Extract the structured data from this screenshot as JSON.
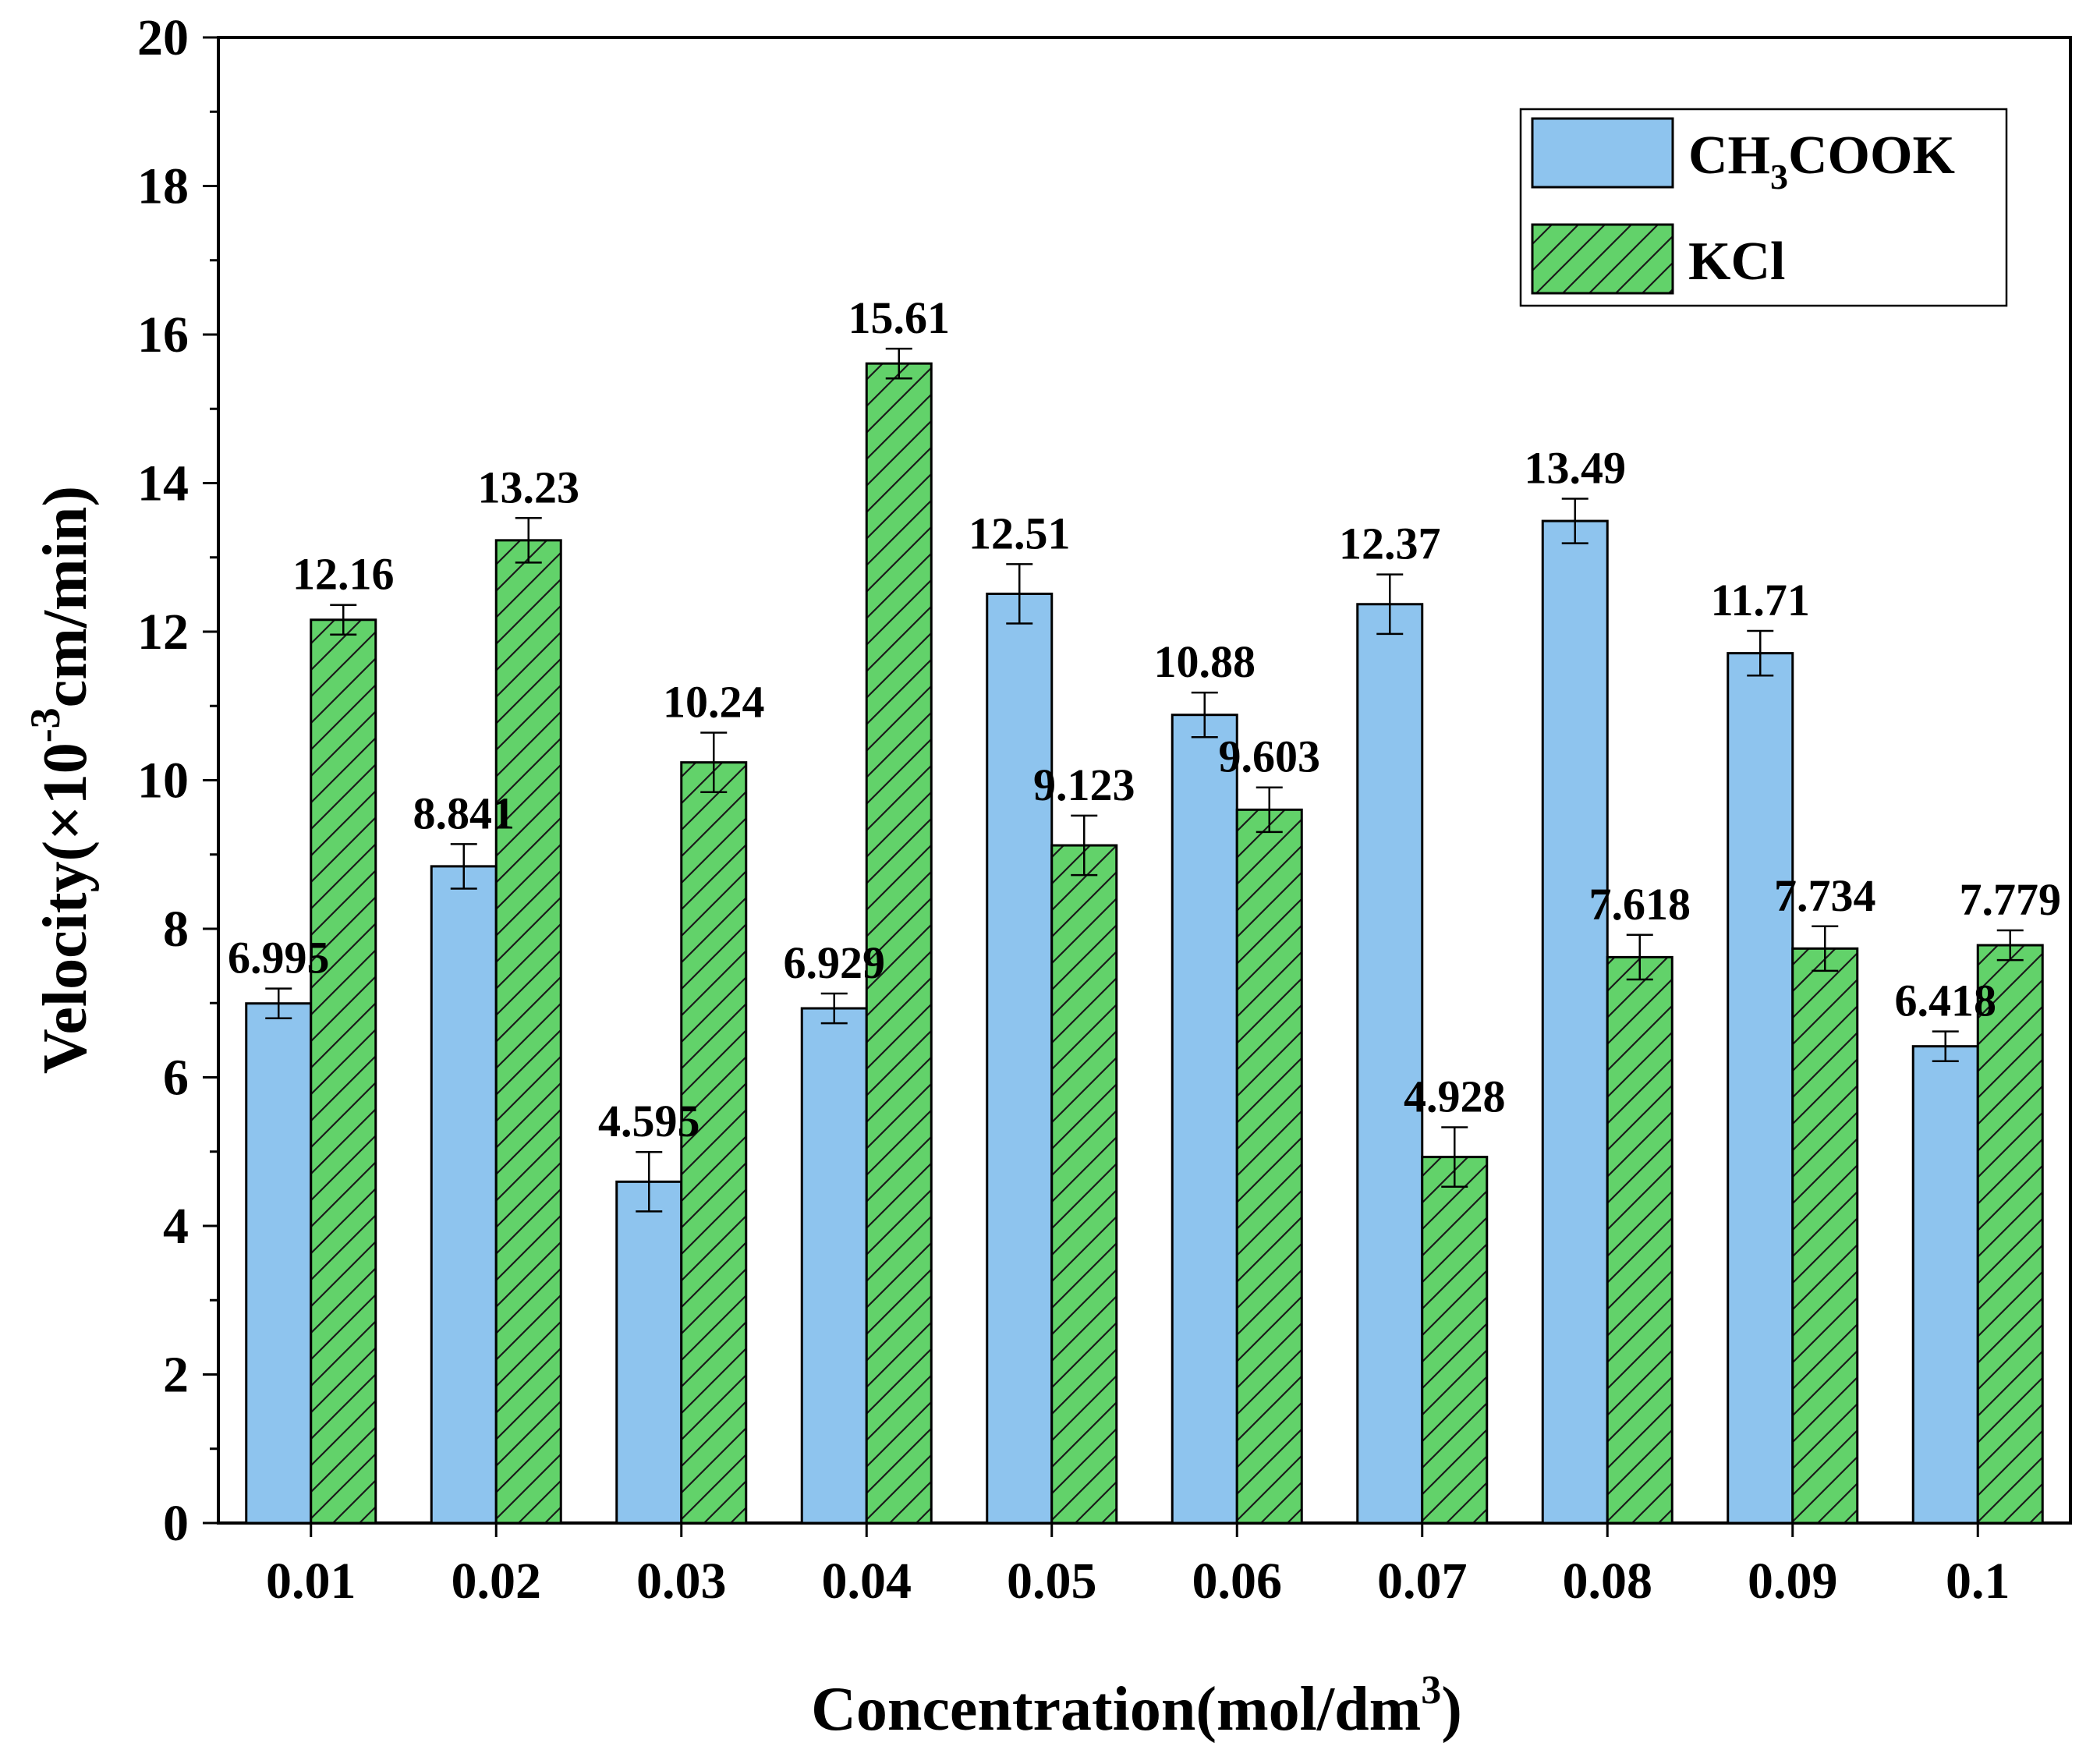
{
  "chart_data": {
    "type": "bar",
    "title": "",
    "xlabel": "Concentration(mol/dm",
    "xlabel_sup": "3",
    "xlabel_end": ")",
    "ylabel_pre": "Velocity(×10",
    "ylabel_sup": "-3",
    "ylabel_post": "cm/min)",
    "categories": [
      "0.01",
      "0.02",
      "0.03",
      "0.04",
      "0.05",
      "0.06",
      "0.07",
      "0.08",
      "0.09",
      "0.1"
    ],
    "ylim": [
      0,
      20
    ],
    "yticks": [
      "0",
      "2",
      "4",
      "6",
      "8",
      "10",
      "12",
      "14",
      "16",
      "18",
      "20"
    ],
    "grid": false,
    "legend_position": "top-right",
    "series": [
      {
        "name": "CH3COOK",
        "legend_main": "CH",
        "legend_sub": "3",
        "legend_tail": "COOK",
        "color": "#8ec4ee",
        "pattern": "solid",
        "values": [
          6.995,
          8.841,
          4.595,
          6.929,
          12.51,
          10.88,
          12.37,
          13.49,
          11.71,
          6.418
        ],
        "labels": [
          "6.995",
          "8.841",
          "4.595",
          "6.929",
          "12.51",
          "10.88",
          "12.37",
          "13.49",
          "11.71",
          "6.418"
        ],
        "errors": [
          0.2,
          0.3,
          0.4,
          0.2,
          0.4,
          0.3,
          0.4,
          0.3,
          0.3,
          0.2
        ]
      },
      {
        "name": "KCl",
        "legend_main": "KCl",
        "legend_sub": "",
        "legend_tail": "",
        "color": "#62d26a",
        "pattern": "hatched",
        "values": [
          12.16,
          13.23,
          10.24,
          15.61,
          9.123,
          9.603,
          4.928,
          7.618,
          7.734,
          7.779
        ],
        "labels": [
          "12.16",
          "13.23",
          "10.24",
          "15.61",
          "9.123",
          "9.603",
          "4.928",
          "7.618",
          "7.734",
          "7.779"
        ],
        "errors": [
          0.2,
          0.3,
          0.4,
          0.2,
          0.4,
          0.3,
          0.4,
          0.3,
          0.3,
          0.2
        ]
      }
    ]
  }
}
